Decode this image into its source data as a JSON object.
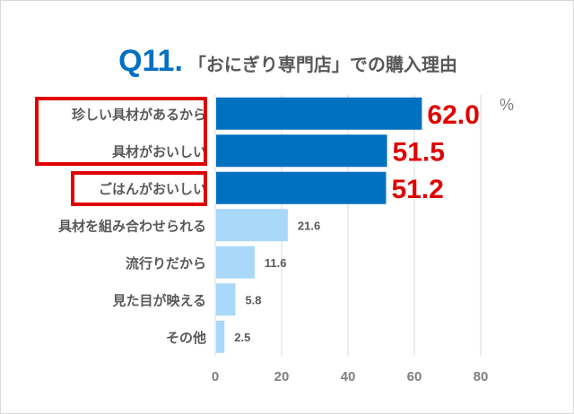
{
  "title": {
    "q": "Q11.",
    "text": "「おにぎり専門店」での購入理由"
  },
  "chart_data": {
    "type": "bar",
    "orientation": "horizontal",
    "title": "Q11. 「おにぎり専門店」での購入理由",
    "unit": "%",
    "categories": [
      "珍しい具材があるから",
      "具材がおいしい",
      "ごはんがおいしい",
      "具材を組み合わせられる",
      "流行りだから",
      "見た目が映える",
      "その他"
    ],
    "values": [
      62.0,
      51.5,
      51.2,
      21.6,
      11.6,
      5.8,
      2.5
    ],
    "labels": [
      "62.0",
      "51.5",
      "51.2",
      "21.6",
      "11.6",
      "5.8",
      "2.5"
    ],
    "highlighted": [
      true,
      true,
      true,
      false,
      false,
      false,
      false
    ],
    "boxed_groups": [
      [
        0,
        1
      ],
      [
        2
      ]
    ],
    "xlim": [
      0,
      80
    ],
    "xticks": [
      "0",
      "20",
      "40",
      "60",
      "80"
    ],
    "grid": true,
    "colors": {
      "highlight_bar": "#0070c0",
      "bar": "#a9d8fa",
      "highlight_label": "#e00000",
      "label": "#595959",
      "box": "#e00000",
      "title_q": "#0070c0"
    }
  }
}
